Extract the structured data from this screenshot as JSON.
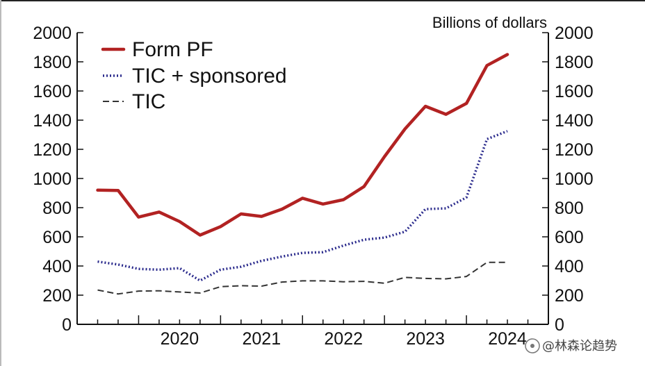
{
  "chart_data": {
    "type": "line",
    "title": "",
    "unit_label": "Billions of dollars",
    "xlabel": "",
    "ylabel": "",
    "ylim": [
      0,
      2000
    ],
    "y_ticks": [
      "0",
      "200",
      "400",
      "600",
      "800",
      "1000",
      "1200",
      "1400",
      "1600",
      "1800",
      "2000"
    ],
    "x_year_labels": [
      "2020",
      "2021",
      "2022",
      "2023",
      "2024"
    ],
    "x_range": [
      2019.25,
      2025.0
    ],
    "x": [
      2019.5,
      2019.75,
      2020.0,
      2020.25,
      2020.5,
      2020.75,
      2021.0,
      2021.25,
      2021.5,
      2021.75,
      2022.0,
      2022.25,
      2022.5,
      2022.75,
      2023.0,
      2023.25,
      2023.5,
      2023.75,
      2024.0,
      2024.25,
      2024.5
    ],
    "legend_position": "top-left",
    "series": [
      {
        "name": "Form PF",
        "style": "solid",
        "color": "#b22222",
        "values": [
          920,
          918,
          735,
          770,
          705,
          612,
          670,
          757,
          740,
          790,
          865,
          825,
          855,
          945,
          1150,
          1340,
          1495,
          1440,
          1515,
          1775,
          1850
        ]
      },
      {
        "name": "TIC + sponsored",
        "style": "dotted",
        "color": "#2a2a8c",
        "values": [
          430,
          410,
          380,
          375,
          385,
          300,
          375,
          395,
          435,
          465,
          490,
          495,
          540,
          580,
          595,
          635,
          790,
          795,
          870,
          1270,
          1325
        ]
      },
      {
        "name": "TIC",
        "style": "dashed",
        "color": "#333333",
        "values": [
          235,
          208,
          228,
          230,
          222,
          215,
          258,
          265,
          262,
          290,
          298,
          298,
          292,
          295,
          282,
          322,
          315,
          312,
          328,
          425,
          425
        ]
      }
    ]
  },
  "watermark": {
    "text": "@林森论趋势"
  }
}
